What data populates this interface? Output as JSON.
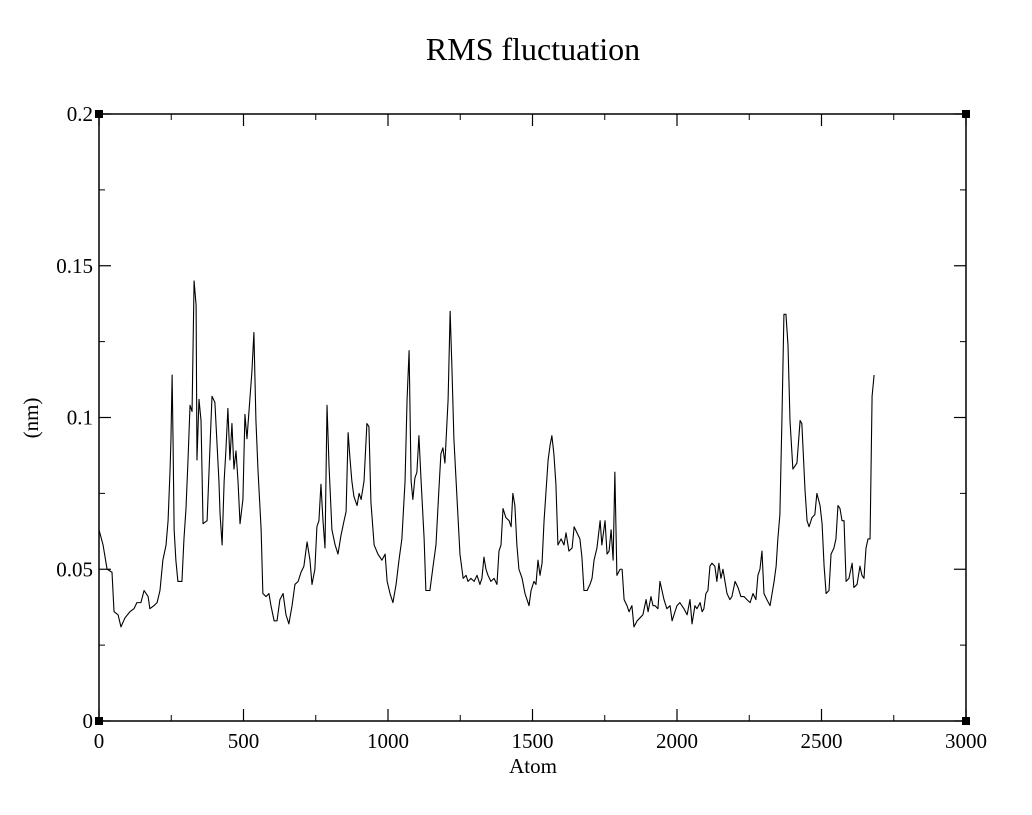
{
  "chart_data": {
    "type": "line",
    "title": "RMS fluctuation",
    "x_label": "Atom",
    "y_label": "(nm)",
    "xlim": [
      0,
      3000
    ],
    "xticks": [
      0,
      500,
      1000,
      1500,
      2000,
      2500,
      3000
    ],
    "ylim": [
      0,
      0.2
    ],
    "yticks": [
      0,
      0.05,
      0.1,
      0.15,
      0.2
    ],
    "x": [
      0,
      14,
      28,
      45,
      52,
      66,
      76,
      90,
      107,
      121,
      131,
      145,
      156,
      170,
      176,
      190,
      201,
      211,
      221,
      232,
      239,
      246,
      249,
      253,
      256,
      260,
      266,
      273,
      287,
      294,
      301,
      308,
      315,
      322,
      329,
      336,
      339,
      346,
      353,
      360,
      374,
      381,
      391,
      401,
      415,
      419,
      426,
      433,
      439,
      446,
      453,
      460,
      467,
      474,
      481,
      488,
      498,
      505,
      512,
      522,
      529,
      536,
      543,
      550,
      561,
      567,
      578,
      588,
      595,
      606,
      616,
      626,
      637,
      647,
      657,
      668,
      678,
      689,
      699,
      709,
      720,
      730,
      737,
      747,
      754,
      761,
      768,
      775,
      782,
      789,
      796,
      806,
      817,
      827,
      837,
      848,
      855,
      862,
      868,
      875,
      882,
      893,
      900,
      907,
      917,
      927,
      934,
      941,
      952,
      965,
      979,
      990,
      997,
      1007,
      1017,
      1028,
      1038,
      1048,
      1059,
      1066,
      1073,
      1080,
      1086,
      1093,
      1100,
      1107,
      1114,
      1125,
      1131,
      1145,
      1156,
      1166,
      1176,
      1183,
      1190,
      1197,
      1208,
      1215,
      1221,
      1228,
      1239,
      1249,
      1260,
      1270,
      1277,
      1287,
      1298,
      1308,
      1318,
      1325,
      1332,
      1339,
      1346,
      1356,
      1367,
      1377,
      1384,
      1391,
      1398,
      1408,
      1419,
      1426,
      1432,
      1439,
      1446,
      1453,
      1464,
      1474,
      1481,
      1488,
      1495,
      1505,
      1512,
      1519,
      1526,
      1533,
      1540,
      1554,
      1561,
      1567,
      1574,
      1581,
      1588,
      1599,
      1609,
      1616,
      1626,
      1637,
      1644,
      1654,
      1664,
      1671,
      1678,
      1689,
      1699,
      1706,
      1713,
      1723,
      1734,
      1740,
      1751,
      1758,
      1765,
      1772,
      1779,
      1785,
      1792,
      1803,
      1810,
      1817,
      1827,
      1834,
      1844,
      1851,
      1862,
      1872,
      1882,
      1893,
      1900,
      1910,
      1917,
      1924,
      1934,
      1941,
      1948,
      1955,
      1965,
      1976,
      1983,
      1993,
      2000,
      2010,
      2017,
      2024,
      2035,
      2045,
      2052,
      2062,
      2069,
      2080,
      2087,
      2093,
      2100,
      2107,
      2114,
      2121,
      2131,
      2138,
      2145,
      2152,
      2159,
      2166,
      2173,
      2183,
      2190,
      2201,
      2211,
      2221,
      2232,
      2242,
      2253,
      2263,
      2273,
      2280,
      2287,
      2294,
      2301,
      2311,
      2322,
      2329,
      2336,
      2343,
      2349,
      2356,
      2363,
      2370,
      2377,
      2384,
      2391,
      2401,
      2415,
      2426,
      2432,
      2443,
      2450,
      2457,
      2467,
      2477,
      2484,
      2495,
      2502,
      2509,
      2516,
      2526,
      2533,
      2543,
      2550,
      2557,
      2564,
      2571,
      2578,
      2585,
      2595,
      2606,
      2612,
      2623,
      2633,
      2640,
      2647,
      2654,
      2661,
      2668,
      2675,
      2682
    ],
    "series": [
      {
        "color": "#000000",
        "values": [
          0.063,
          0.058,
          0.05,
          0.049,
          0.036,
          0.035,
          0.031,
          0.034,
          0.036,
          0.037,
          0.039,
          0.039,
          0.043,
          0.041,
          0.037,
          0.038,
          0.039,
          0.043,
          0.053,
          0.058,
          0.066,
          0.083,
          0.093,
          0.114,
          0.094,
          0.063,
          0.053,
          0.046,
          0.046,
          0.06,
          0.07,
          0.086,
          0.104,
          0.102,
          0.145,
          0.137,
          0.086,
          0.106,
          0.099,
          0.065,
          0.066,
          0.083,
          0.107,
          0.105,
          0.079,
          0.068,
          0.058,
          0.079,
          0.089,
          0.103,
          0.086,
          0.098,
          0.083,
          0.089,
          0.079,
          0.065,
          0.073,
          0.101,
          0.093,
          0.106,
          0.115,
          0.128,
          0.099,
          0.083,
          0.063,
          0.042,
          0.041,
          0.042,
          0.038,
          0.033,
          0.033,
          0.04,
          0.042,
          0.035,
          0.032,
          0.038,
          0.045,
          0.046,
          0.049,
          0.051,
          0.059,
          0.053,
          0.045,
          0.05,
          0.064,
          0.066,
          0.078,
          0.066,
          0.057,
          0.104,
          0.084,
          0.063,
          0.058,
          0.055,
          0.061,
          0.066,
          0.069,
          0.095,
          0.087,
          0.079,
          0.074,
          0.071,
          0.075,
          0.073,
          0.079,
          0.098,
          0.097,
          0.072,
          0.058,
          0.055,
          0.053,
          0.055,
          0.046,
          0.042,
          0.039,
          0.045,
          0.053,
          0.06,
          0.079,
          0.106,
          0.122,
          0.079,
          0.073,
          0.08,
          0.082,
          0.094,
          0.08,
          0.06,
          0.043,
          0.043,
          0.051,
          0.058,
          0.076,
          0.088,
          0.09,
          0.085,
          0.106,
          0.135,
          0.117,
          0.093,
          0.073,
          0.055,
          0.047,
          0.048,
          0.046,
          0.047,
          0.046,
          0.048,
          0.045,
          0.047,
          0.054,
          0.05,
          0.048,
          0.046,
          0.047,
          0.045,
          0.056,
          0.058,
          0.07,
          0.067,
          0.066,
          0.064,
          0.075,
          0.071,
          0.058,
          0.05,
          0.047,
          0.042,
          0.04,
          0.038,
          0.043,
          0.046,
          0.045,
          0.053,
          0.048,
          0.052,
          0.066,
          0.086,
          0.091,
          0.094,
          0.088,
          0.078,
          0.058,
          0.06,
          0.058,
          0.062,
          0.056,
          0.057,
          0.064,
          0.062,
          0.06,
          0.054,
          0.043,
          0.043,
          0.045,
          0.047,
          0.053,
          0.057,
          0.066,
          0.058,
          0.066,
          0.055,
          0.056,
          0.063,
          0.053,
          0.082,
          0.048,
          0.05,
          0.05,
          0.04,
          0.038,
          0.036,
          0.038,
          0.031,
          0.033,
          0.034,
          0.035,
          0.04,
          0.036,
          0.041,
          0.038,
          0.038,
          0.037,
          0.046,
          0.043,
          0.04,
          0.037,
          0.038,
          0.033,
          0.036,
          0.038,
          0.039,
          0.038,
          0.037,
          0.035,
          0.04,
          0.032,
          0.038,
          0.037,
          0.039,
          0.036,
          0.037,
          0.042,
          0.043,
          0.051,
          0.052,
          0.051,
          0.046,
          0.052,
          0.047,
          0.05,
          0.046,
          0.042,
          0.04,
          0.041,
          0.046,
          0.044,
          0.041,
          0.041,
          0.04,
          0.039,
          0.042,
          0.04,
          0.048,
          0.05,
          0.056,
          0.042,
          0.04,
          0.038,
          0.042,
          0.046,
          0.051,
          0.06,
          0.068,
          0.099,
          0.134,
          0.134,
          0.124,
          0.099,
          0.083,
          0.085,
          0.099,
          0.098,
          0.076,
          0.066,
          0.064,
          0.067,
          0.068,
          0.075,
          0.071,
          0.065,
          0.051,
          0.042,
          0.043,
          0.055,
          0.057,
          0.06,
          0.071,
          0.07,
          0.066,
          0.066,
          0.046,
          0.047,
          0.052,
          0.044,
          0.045,
          0.051,
          0.048,
          0.047,
          0.057,
          0.06,
          0.06,
          0.107,
          0.114
        ]
      }
    ]
  }
}
